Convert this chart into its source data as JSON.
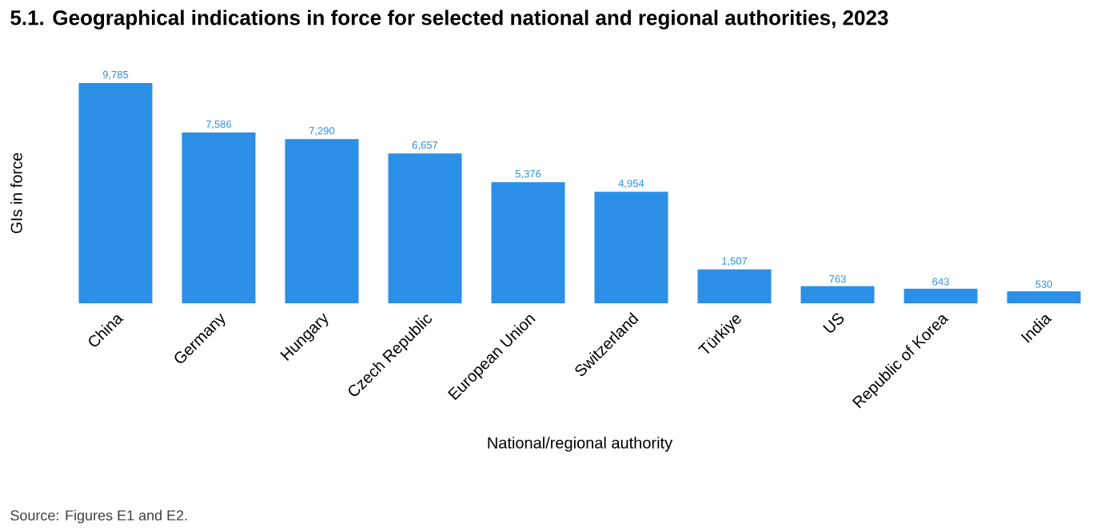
{
  "chart_data": {
    "type": "bar",
    "title": "5.1. Geographical indications in force for selected national and regional authorities, 2023",
    "xlabel": "National/regional authority",
    "ylabel": "GIs in force",
    "categories": [
      "China",
      "Germany",
      "Hungary",
      "Czech Republic",
      "European Union",
      "Switzerland",
      "Türkiye",
      "US",
      "Republic of Korea",
      "India"
    ],
    "values": [
      9785,
      7586,
      7290,
      6657,
      5376,
      4954,
      1507,
      763,
      643,
      530
    ],
    "value_labels": [
      "9,785",
      "7,586",
      "7,290",
      "6,657",
      "5,376",
      "4,954",
      "1,507",
      "763",
      "643",
      "530"
    ],
    "color": "#2b8fe6",
    "annotations": [
      "Source: Figures E1 and E2."
    ]
  }
}
